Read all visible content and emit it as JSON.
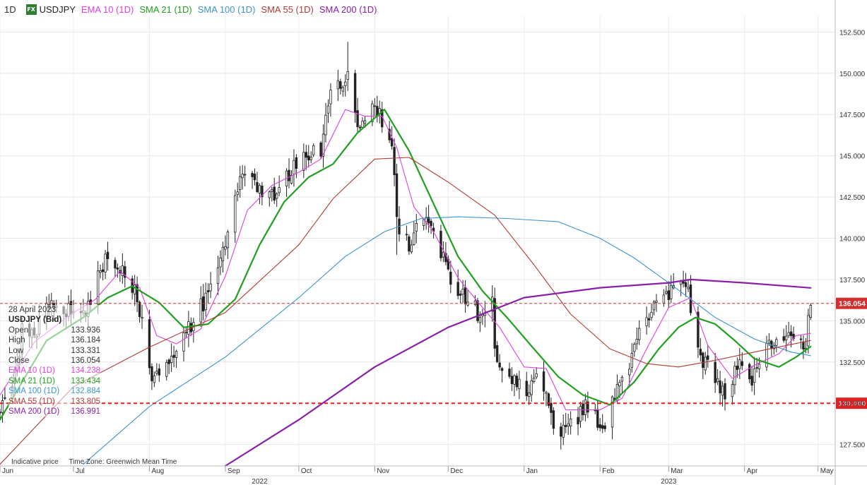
{
  "header": {
    "timeframe": "1D",
    "fx_badge": "FX",
    "symbol": "USDJPY",
    "indicators": [
      {
        "label": "EMA 10 (1D)",
        "color": "#e040e0"
      },
      {
        "label": "SMA 21 (1D)",
        "color": "#1fa01f"
      },
      {
        "label": "SMA 100 (1D)",
        "color": "#3a95d0"
      },
      {
        "label": "SMA 55 (1D)",
        "color": "#b03a35"
      },
      {
        "label": "SMA 200 (1D)",
        "color": "#8a1fa8"
      }
    ]
  },
  "info_box": {
    "date": "28 April 2023",
    "symbol": "USDJPY (Bid)",
    "rows": [
      {
        "label": "Open",
        "value": "133.936",
        "color": "#333333"
      },
      {
        "label": "High",
        "value": "136.184",
        "color": "#333333"
      },
      {
        "label": "Low",
        "value": "133.331",
        "color": "#333333"
      },
      {
        "label": "Close",
        "value": "136.054",
        "color": "#333333"
      },
      {
        "label": "EMA 10 (1D)",
        "value": "134.238",
        "color": "#e040e0"
      },
      {
        "label": "SMA 21 (1D)",
        "value": "133.434",
        "color": "#1fa01f"
      },
      {
        "label": "SMA 100 (1D)",
        "value": "132.884",
        "color": "#3a95d0"
      },
      {
        "label": "SMA 55 (1D)",
        "value": "133.805",
        "color": "#b03a35"
      },
      {
        "label": "SMA 200 (1D)",
        "value": "136.991",
        "color": "#8a1fa8"
      }
    ]
  },
  "footer": {
    "indicative": "Indicative price",
    "timezone": "Time Zone: Greenwich Mean Time"
  },
  "chart_data": {
    "type": "candlestick",
    "ylim": [
      126.2,
      153.5
    ],
    "y_ticks": [
      "127.500",
      "130.000",
      "132.500",
      "135.000",
      "137.500",
      "140.000",
      "142.500",
      "145.000",
      "147.500",
      "150.000",
      "152.500"
    ],
    "y_tick_values": [
      127.5,
      130,
      132.5,
      135,
      137.5,
      140,
      142.5,
      145,
      147.5,
      150,
      152.5
    ],
    "x_start": "2022-06-01",
    "x_end": "2023-05-08",
    "month_labels": [
      {
        "label": "Jun",
        "date": "2022-06-01"
      },
      {
        "label": "Jul",
        "date": "2022-07-01"
      },
      {
        "label": "Aug",
        "date": "2022-08-01"
      },
      {
        "label": "Sep",
        "date": "2022-09-01"
      },
      {
        "label": "Oct",
        "date": "2022-10-01"
      },
      {
        "label": "Nov",
        "date": "2022-11-01"
      },
      {
        "label": "Dec",
        "date": "2022-12-01"
      },
      {
        "label": "Jan",
        "date": "2023-01-01"
      },
      {
        "label": "Feb",
        "date": "2023-02-01"
      },
      {
        "label": "Mar",
        "date": "2023-03-01"
      },
      {
        "label": "Apr",
        "date": "2023-04-01"
      },
      {
        "label": "May",
        "date": "2023-05-01"
      }
    ],
    "year_labels": [
      {
        "label": "2022",
        "date": "2022-09-15"
      },
      {
        "label": "2023",
        "date": "2023-03-01"
      }
    ],
    "horizontal_lines": [
      {
        "value": 136.054,
        "label": "136.054",
        "style": "thin-dashed",
        "color": "#d32f2f"
      },
      {
        "value": 130.0,
        "label": "130.000",
        "style": "thick-dashed",
        "color": "#e02020"
      }
    ],
    "anchors": [
      [
        "2022-06-01",
        129.6
      ],
      [
        "2022-06-06",
        130.6
      ],
      [
        "2022-06-10",
        134.3
      ],
      [
        "2022-06-15",
        134.1
      ],
      [
        "2022-06-22",
        136.3
      ],
      [
        "2022-06-30",
        135.4
      ],
      [
        "2022-07-07",
        135.9
      ],
      [
        "2022-07-14",
        138.9
      ],
      [
        "2022-07-20",
        138.2
      ],
      [
        "2022-07-27",
        136.4
      ],
      [
        "2022-08-02",
        131.2
      ],
      [
        "2022-08-10",
        132.8
      ],
      [
        "2022-08-16",
        134.2
      ],
      [
        "2022-08-25",
        136.6
      ],
      [
        "2022-09-01",
        139.6
      ],
      [
        "2022-09-07",
        144.0
      ],
      [
        "2022-09-14",
        143.2
      ],
      [
        "2022-09-22",
        142.4
      ],
      [
        "2022-09-29",
        144.4
      ],
      [
        "2022-10-10",
        145.4
      ],
      [
        "2022-10-14",
        148.6
      ],
      [
        "2022-10-21",
        149.6
      ],
      [
        "2022-10-26",
        146.4
      ],
      [
        "2022-11-01",
        148.1
      ],
      [
        "2022-11-08",
        145.6
      ],
      [
        "2022-11-10",
        141.0
      ],
      [
        "2022-11-15",
        139.5
      ],
      [
        "2022-11-21",
        141.6
      ],
      [
        "2022-11-30",
        138.3
      ],
      [
        "2022-12-05",
        136.7
      ],
      [
        "2022-12-14",
        135.4
      ],
      [
        "2022-12-19",
        136.7
      ],
      [
        "2022-12-20",
        132.8
      ],
      [
        "2022-12-30",
        131.1
      ],
      [
        "2023-01-03",
        130.9
      ],
      [
        "2023-01-06",
        132.1
      ],
      [
        "2023-01-12",
        129.2
      ],
      [
        "2023-01-16",
        128.2
      ],
      [
        "2023-01-27",
        129.9
      ],
      [
        "2023-02-02",
        128.6
      ],
      [
        "2023-02-10",
        131.4
      ],
      [
        "2023-02-17",
        134.1
      ],
      [
        "2023-02-24",
        136.3
      ],
      [
        "2023-03-02",
        136.6
      ],
      [
        "2023-03-08",
        137.3
      ],
      [
        "2023-03-13",
        133.2
      ],
      [
        "2023-03-20",
        131.5
      ],
      [
        "2023-03-24",
        130.7
      ],
      [
        "2023-03-31",
        132.8
      ],
      [
        "2023-04-04",
        131.5
      ],
      [
        "2023-04-10",
        133.5
      ],
      [
        "2023-04-18",
        134.4
      ],
      [
        "2023-04-26",
        133.6
      ],
      [
        "2023-04-28",
        136.054
      ]
    ],
    "spikes": [
      {
        "date": "2022-10-21",
        "high": 151.9
      },
      {
        "date": "2022-11-10",
        "low": 139.0
      },
      {
        "date": "2023-01-16",
        "low": 127.2
      },
      {
        "date": "2023-03-08",
        "high": 137.9
      }
    ],
    "series": [
      {
        "name": "EMA 10 (1D)",
        "color": "#e040e0",
        "width": 1.1,
        "values": [
          [
            "2022-06-01",
            130.5
          ],
          [
            "2022-06-15",
            133.7
          ],
          [
            "2022-06-30",
            135.4
          ],
          [
            "2022-07-10",
            136.3
          ],
          [
            "2022-07-20",
            138.0
          ],
          [
            "2022-07-28",
            137.0
          ],
          [
            "2022-08-04",
            134.1
          ],
          [
            "2022-08-12",
            133.6
          ],
          [
            "2022-08-22",
            134.5
          ],
          [
            "2022-09-01",
            137.7
          ],
          [
            "2022-09-10",
            141.7
          ],
          [
            "2022-09-20",
            143.2
          ],
          [
            "2022-10-01",
            144.0
          ],
          [
            "2022-10-10",
            144.8
          ],
          [
            "2022-10-20",
            147.8
          ],
          [
            "2022-10-28",
            147.4
          ],
          [
            "2022-11-04",
            147.4
          ],
          [
            "2022-11-10",
            145.5
          ],
          [
            "2022-11-17",
            141.9
          ],
          [
            "2022-11-25",
            140.4
          ],
          [
            "2022-12-05",
            137.6
          ],
          [
            "2022-12-15",
            135.8
          ],
          [
            "2022-12-22",
            134.6
          ],
          [
            "2023-01-01",
            132.2
          ],
          [
            "2023-01-10",
            132.1
          ],
          [
            "2023-01-18",
            129.6
          ],
          [
            "2023-02-01",
            129.6
          ],
          [
            "2023-02-10",
            130.3
          ],
          [
            "2023-02-20",
            133.3
          ],
          [
            "2023-03-01",
            135.8
          ],
          [
            "2023-03-10",
            136.4
          ],
          [
            "2023-03-17",
            133.5
          ],
          [
            "2023-03-27",
            131.5
          ],
          [
            "2023-04-05",
            132.3
          ],
          [
            "2023-04-15",
            133.0
          ],
          [
            "2023-04-22",
            134.1
          ],
          [
            "2023-04-28",
            134.238
          ]
        ]
      },
      {
        "name": "SMA 21 (1D)",
        "color": "#1fa01f",
        "width": 2.2,
        "values": [
          [
            "2022-06-01",
            129.0
          ],
          [
            "2022-06-20",
            133.8
          ],
          [
            "2022-07-05",
            135.2
          ],
          [
            "2022-07-15",
            136.4
          ],
          [
            "2022-07-25",
            137.1
          ],
          [
            "2022-08-05",
            136.1
          ],
          [
            "2022-08-15",
            134.6
          ],
          [
            "2022-08-25",
            134.8
          ],
          [
            "2022-09-05",
            136.3
          ],
          [
            "2022-09-15",
            139.6
          ],
          [
            "2022-09-25",
            142.2
          ],
          [
            "2022-10-05",
            143.7
          ],
          [
            "2022-10-15",
            144.5
          ],
          [
            "2022-10-25",
            146.4
          ],
          [
            "2022-11-05",
            147.8
          ],
          [
            "2022-11-15",
            145.3
          ],
          [
            "2022-11-25",
            142.1
          ],
          [
            "2022-12-05",
            138.9
          ],
          [
            "2022-12-15",
            136.8
          ],
          [
            "2022-12-25",
            135.2
          ],
          [
            "2023-01-05",
            133.3
          ],
          [
            "2023-01-15",
            131.6
          ],
          [
            "2023-01-25",
            130.5
          ],
          [
            "2023-02-05",
            129.9
          ],
          [
            "2023-02-15",
            131.3
          ],
          [
            "2023-02-25",
            133.3
          ],
          [
            "2023-03-05",
            134.6
          ],
          [
            "2023-03-12",
            135.2
          ],
          [
            "2023-03-20",
            134.8
          ],
          [
            "2023-03-28",
            133.8
          ],
          [
            "2023-04-05",
            132.7
          ],
          [
            "2023-04-15",
            132.2
          ],
          [
            "2023-04-22",
            132.8
          ],
          [
            "2023-04-28",
            133.434
          ]
        ]
      },
      {
        "name": "SMA 100 (1D)",
        "color": "#3a95d0",
        "width": 1.1,
        "values": [
          [
            "2022-07-05",
            126.3
          ],
          [
            "2022-08-01",
            129.8
          ],
          [
            "2022-09-01",
            132.8
          ],
          [
            "2022-10-01",
            136.4
          ],
          [
            "2022-10-20",
            138.9
          ],
          [
            "2022-11-05",
            140.4
          ],
          [
            "2022-11-20",
            141.2
          ],
          [
            "2022-12-05",
            141.3
          ],
          [
            "2022-12-25",
            141.2
          ],
          [
            "2023-01-15",
            141.0
          ],
          [
            "2023-02-01",
            140.0
          ],
          [
            "2023-02-15",
            138.8
          ],
          [
            "2023-03-01",
            137.3
          ],
          [
            "2023-03-20",
            135.2
          ],
          [
            "2023-04-05",
            133.9
          ],
          [
            "2023-04-20",
            133.1
          ],
          [
            "2023-04-28",
            132.884
          ]
        ]
      },
      {
        "name": "SMA 55 (1D)",
        "color": "#b03a35",
        "width": 1.1,
        "values": [
          [
            "2022-06-01",
            126.3
          ],
          [
            "2022-07-01",
            131.0
          ],
          [
            "2022-08-01",
            133.4
          ],
          [
            "2022-09-01",
            135.5
          ],
          [
            "2022-10-01",
            139.6
          ],
          [
            "2022-10-15",
            142.4
          ],
          [
            "2022-11-01",
            144.8
          ],
          [
            "2022-11-15",
            144.9
          ],
          [
            "2022-12-01",
            143.4
          ],
          [
            "2022-12-20",
            141.4
          ],
          [
            "2023-01-05",
            138.4
          ],
          [
            "2023-01-20",
            135.4
          ],
          [
            "2023-02-05",
            133.3
          ],
          [
            "2023-02-20",
            132.4
          ],
          [
            "2023-03-05",
            132.2
          ],
          [
            "2023-03-20",
            132.6
          ],
          [
            "2023-04-05",
            133.1
          ],
          [
            "2023-04-28",
            133.805
          ]
        ]
      },
      {
        "name": "SMA 200 (1D)",
        "color": "#8a1fa8",
        "width": 2.2,
        "values": [
          [
            "2022-09-01",
            126.2
          ],
          [
            "2022-10-01",
            129.0
          ],
          [
            "2022-11-01",
            132.2
          ],
          [
            "2022-12-01",
            134.6
          ],
          [
            "2023-01-01",
            136.4
          ],
          [
            "2023-02-01",
            137.0
          ],
          [
            "2023-03-01",
            137.3
          ],
          [
            "2023-03-10",
            137.5
          ],
          [
            "2023-04-01",
            137.3
          ],
          [
            "2023-04-28",
            136.991
          ]
        ]
      }
    ]
  }
}
